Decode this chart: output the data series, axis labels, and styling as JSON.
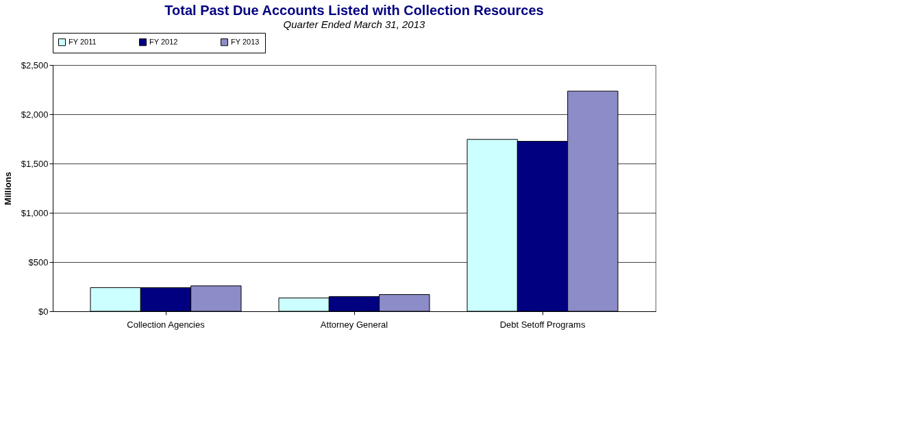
{
  "chart_data": {
    "type": "bar",
    "title": "Total Past Due Accounts Listed with Collection Resources",
    "subtitle": "Quarter Ended March 31, 2013",
    "ylabel": "Millions",
    "categories": [
      "Collection Agencies",
      "Attorney General",
      "Debt Setoff Programs"
    ],
    "series": [
      {
        "name": "FY 2011",
        "color": "#ccffff",
        "values": [
          240,
          135,
          1745
        ]
      },
      {
        "name": "FY 2012",
        "color": "#000080",
        "values": [
          240,
          150,
          1725
        ]
      },
      {
        "name": "FY 2013",
        "color": "#8c8cc8",
        "values": [
          258,
          170,
          2235
        ]
      }
    ],
    "ylim": [
      0,
      2500
    ],
    "yticks": [
      {
        "value": 0,
        "label": "$0"
      },
      {
        "value": 500,
        "label": "$500"
      },
      {
        "value": 1000,
        "label": "$1,000"
      },
      {
        "value": 1500,
        "label": "$1,500"
      },
      {
        "value": 2000,
        "label": "$2,000"
      },
      {
        "value": 2500,
        "label": "$2,500"
      }
    ],
    "grid": "y",
    "legend": "top"
  }
}
